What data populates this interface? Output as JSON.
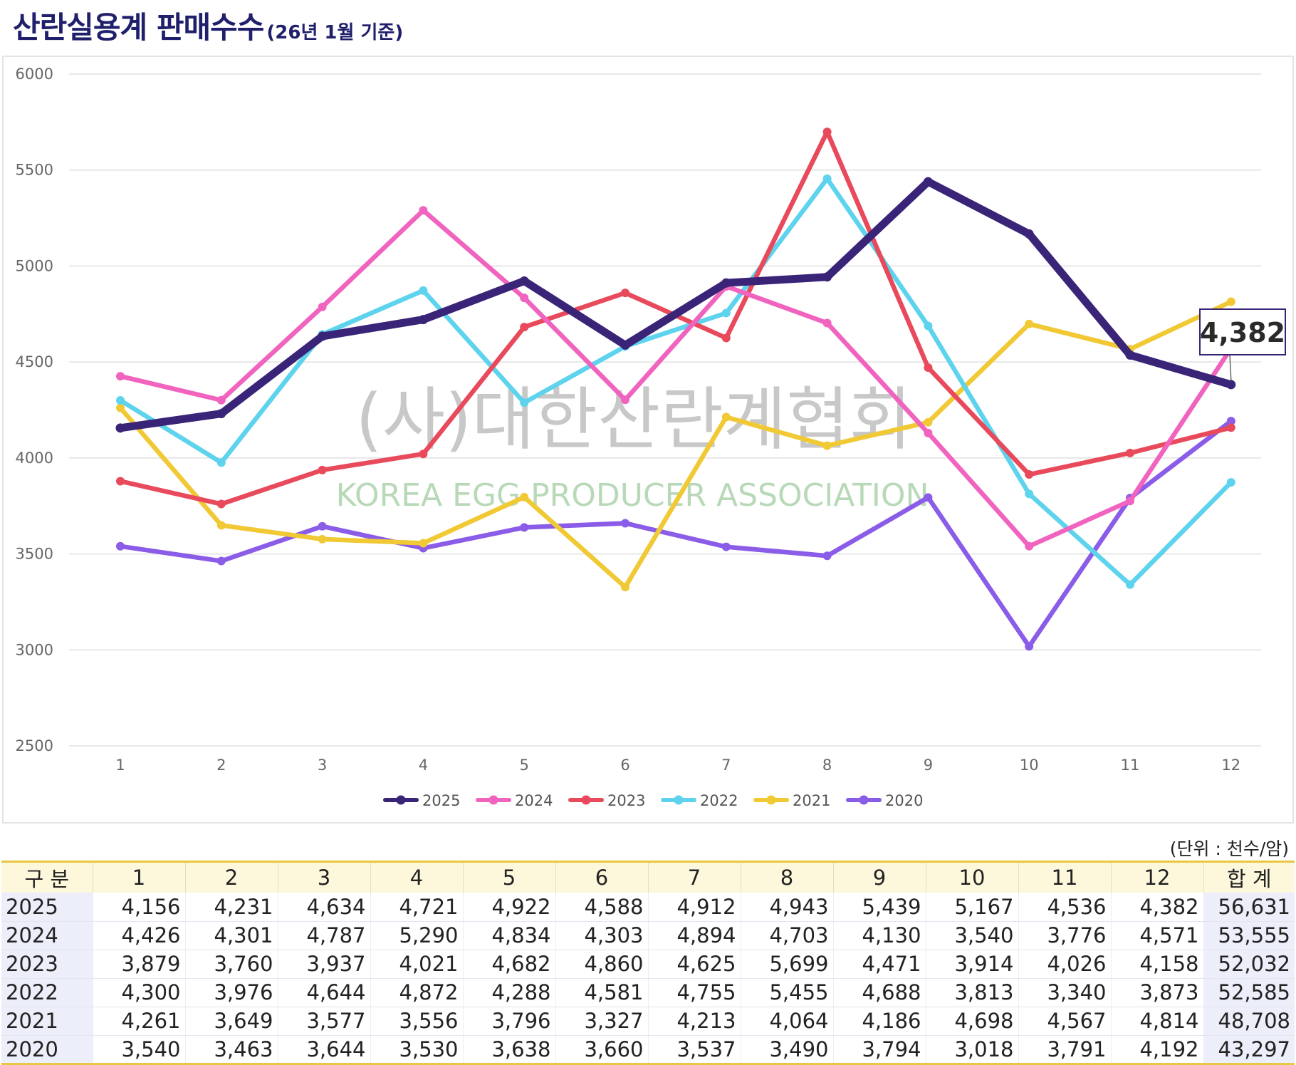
{
  "title": {
    "main": "산란실용계 판매수수",
    "sub": "(26년 1월 기준)"
  },
  "watermark": {
    "korean": "(사)대한산란계협회",
    "english": "KOREA EGG PRODUCER ASSOCIATION"
  },
  "unit_label": "(단위 : 천수/암)",
  "table": {
    "header": [
      "구 분",
      "1",
      "2",
      "3",
      "4",
      "5",
      "6",
      "7",
      "8",
      "9",
      "10",
      "11",
      "12",
      "합 계"
    ],
    "rows": [
      {
        "year": "2025",
        "values": [
          "4,156",
          "4,231",
          "4,634",
          "4,721",
          "4,922",
          "4,588",
          "4,912",
          "4,943",
          "5,439",
          "5,167",
          "4,536",
          "4,382"
        ],
        "total": "56,631"
      },
      {
        "year": "2024",
        "values": [
          "4,426",
          "4,301",
          "4,787",
          "5,290",
          "4,834",
          "4,303",
          "4,894",
          "4,703",
          "4,130",
          "3,540",
          "3,776",
          "4,571"
        ],
        "total": "53,555"
      },
      {
        "year": "2023",
        "values": [
          "3,879",
          "3,760",
          "3,937",
          "4,021",
          "4,682",
          "4,860",
          "4,625",
          "5,699",
          "4,471",
          "3,914",
          "4,026",
          "4,158"
        ],
        "total": "52,032"
      },
      {
        "year": "2022",
        "values": [
          "4,300",
          "3,976",
          "4,644",
          "4,872",
          "4,288",
          "4,581",
          "4,755",
          "5,455",
          "4,688",
          "3,813",
          "3,340",
          "3,873"
        ],
        "total": "52,585"
      },
      {
        "year": "2021",
        "values": [
          "4,261",
          "3,649",
          "3,577",
          "3,556",
          "3,796",
          "3,327",
          "4,213",
          "4,064",
          "4,186",
          "4,698",
          "4,567",
          "4,814"
        ],
        "total": "48,708"
      },
      {
        "year": "2020",
        "values": [
          "3,540",
          "3,463",
          "3,644",
          "3,530",
          "3,638",
          "3,660",
          "3,537",
          "3,490",
          "3,794",
          "3,018",
          "3,791",
          "4,192"
        ],
        "total": "43,297"
      }
    ]
  },
  "chart_data": {
    "type": "line",
    "title": "산란실용계 판매수수",
    "subtitle": "(26년 1월 기준)",
    "xlabel": "",
    "ylabel": "",
    "x": [
      1,
      2,
      3,
      4,
      5,
      6,
      7,
      8,
      9,
      10,
      11,
      12
    ],
    "ylim": [
      2500,
      6000
    ],
    "yticks": [
      2500,
      3000,
      3500,
      4000,
      4500,
      5000,
      5500,
      6000
    ],
    "grid": true,
    "legend_position": "bottom",
    "series": [
      {
        "name": "2025",
        "color": "#3a2478",
        "values": [
          4156,
          4231,
          4634,
          4721,
          4922,
          4588,
          4912,
          4943,
          5439,
          5167,
          4536,
          4382
        ]
      },
      {
        "name": "2024",
        "color": "#f063be",
        "values": [
          4426,
          4301,
          4787,
          5290,
          4834,
          4303,
          4894,
          4703,
          4130,
          3540,
          3776,
          4571
        ]
      },
      {
        "name": "2023",
        "color": "#e84a5c",
        "values": [
          3879,
          3760,
          3937,
          4021,
          4682,
          4860,
          4625,
          5699,
          4471,
          3914,
          4026,
          4158
        ]
      },
      {
        "name": "2022",
        "color": "#5dd3ed",
        "values": [
          4300,
          3976,
          4644,
          4872,
          4288,
          4581,
          4755,
          5455,
          4688,
          3813,
          3340,
          3873
        ]
      },
      {
        "name": "2021",
        "color": "#f0c935",
        "values": [
          4261,
          3649,
          3577,
          3556,
          3796,
          3327,
          4213,
          4064,
          4186,
          4698,
          4567,
          4814
        ]
      },
      {
        "name": "2020",
        "color": "#8a5ce8",
        "values": [
          3540,
          3463,
          3644,
          3530,
          3638,
          3660,
          3537,
          3490,
          3794,
          3018,
          3791,
          4192
        ]
      }
    ],
    "annotation": {
      "series": "2025",
      "x": 12,
      "text": "4,382"
    }
  }
}
